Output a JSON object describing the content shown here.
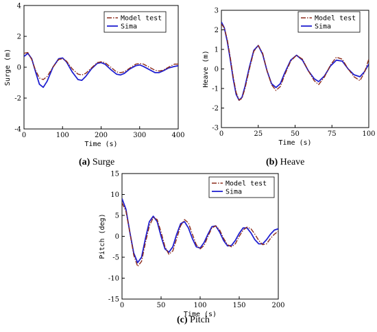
{
  "chart_data": [
    {
      "id": "surge",
      "type": "line",
      "caption_label": "(a)",
      "caption_text": " Surge",
      "xlabel": "Time (s)",
      "ylabel": "Surge (m)",
      "xlim": [
        0,
        400
      ],
      "ylim": [
        -4,
        4
      ],
      "xticks": [
        0,
        100,
        200,
        300,
        400
      ],
      "yticks": [
        -4,
        -2,
        0,
        2,
        4
      ],
      "legend_position": "top-right",
      "series": [
        {
          "name": "Model test",
          "color": "#8b2a1a",
          "style": "dashdot",
          "x": [
            0,
            10,
            20,
            30,
            40,
            50,
            60,
            75,
            90,
            100,
            110,
            125,
            140,
            150,
            160,
            175,
            190,
            200,
            210,
            225,
            240,
            250,
            260,
            275,
            290,
            300,
            310,
            325,
            340,
            350,
            360,
            375,
            390,
            400
          ],
          "y": [
            0.9,
            0.95,
            0.5,
            -0.2,
            -0.7,
            -0.8,
            -0.6,
            0.0,
            0.5,
            0.55,
            0.4,
            -0.1,
            -0.45,
            -0.5,
            -0.4,
            -0.05,
            0.3,
            0.35,
            0.3,
            0.0,
            -0.3,
            -0.35,
            -0.3,
            -0.05,
            0.2,
            0.25,
            0.2,
            0.0,
            -0.2,
            -0.25,
            -0.2,
            0.0,
            0.2,
            0.2
          ]
        },
        {
          "name": "Sima",
          "color": "#1f1fd0",
          "style": "solid",
          "x": [
            0,
            10,
            20,
            30,
            40,
            50,
            60,
            75,
            90,
            100,
            110,
            125,
            140,
            150,
            160,
            175,
            190,
            200,
            210,
            225,
            240,
            250,
            260,
            275,
            290,
            300,
            310,
            325,
            340,
            350,
            360,
            375,
            390,
            400
          ],
          "y": [
            0.7,
            0.9,
            0.55,
            -0.3,
            -1.1,
            -1.3,
            -0.9,
            0.0,
            0.55,
            0.6,
            0.35,
            -0.3,
            -0.8,
            -0.85,
            -0.6,
            -0.1,
            0.25,
            0.3,
            0.2,
            -0.15,
            -0.45,
            -0.5,
            -0.4,
            -0.1,
            0.1,
            0.15,
            0.05,
            -0.15,
            -0.35,
            -0.35,
            -0.25,
            -0.05,
            0.05,
            0.1
          ]
        }
      ]
    },
    {
      "id": "heave",
      "type": "line",
      "caption_label": "(b)",
      "caption_text": " Heave",
      "xlabel": "Time (s)",
      "ylabel": "Heave (m)",
      "xlim": [
        0,
        100
      ],
      "ylim": [
        -3,
        3
      ],
      "xticks": [
        0,
        25,
        50,
        75,
        100
      ],
      "yticks": [
        -3,
        -2,
        -1,
        0,
        1,
        2,
        3
      ],
      "legend_position": "top-right",
      "series": [
        {
          "name": "Model test",
          "color": "#8b2a1a",
          "style": "dashdot",
          "x": [
            0,
            2,
            4,
            6,
            8,
            10,
            12,
            14,
            16,
            19,
            22,
            25,
            28,
            31,
            34,
            37,
            40,
            43,
            47,
            51,
            55,
            59,
            63,
            66,
            70,
            74,
            78,
            82,
            86,
            90,
            94,
            97,
            100
          ],
          "y": [
            2.3,
            2.1,
            1.5,
            0.6,
            -0.4,
            -1.2,
            -1.6,
            -1.5,
            -1.0,
            0.0,
            0.9,
            1.2,
            0.8,
            -0.1,
            -0.8,
            -1.1,
            -0.9,
            -0.3,
            0.4,
            0.7,
            0.5,
            -0.1,
            -0.6,
            -0.8,
            -0.4,
            0.2,
            0.6,
            0.5,
            0.0,
            -0.4,
            -0.6,
            -0.2,
            0.5
          ]
        },
        {
          "name": "Sima",
          "color": "#1f1fd0",
          "style": "solid",
          "x": [
            0,
            2,
            4,
            6,
            8,
            10,
            12,
            14,
            16,
            19,
            22,
            25,
            28,
            31,
            34,
            37,
            40,
            43,
            47,
            51,
            55,
            59,
            63,
            66,
            70,
            74,
            78,
            82,
            86,
            90,
            94,
            97,
            100
          ],
          "y": [
            2.4,
            2.1,
            1.4,
            0.5,
            -0.5,
            -1.3,
            -1.6,
            -1.45,
            -0.9,
            0.1,
            0.95,
            1.2,
            0.75,
            -0.1,
            -0.75,
            -0.95,
            -0.75,
            -0.2,
            0.45,
            0.7,
            0.45,
            -0.1,
            -0.5,
            -0.65,
            -0.35,
            0.15,
            0.45,
            0.4,
            0.0,
            -0.3,
            -0.4,
            -0.15,
            0.25
          ]
        }
      ]
    },
    {
      "id": "pitch",
      "type": "line",
      "caption_label": "(c)",
      "caption_text": " Pitch",
      "xlabel": "Time (s)",
      "ylabel": "Pitch (deg)",
      "xlim": [
        0,
        200
      ],
      "ylim": [
        -15,
        15
      ],
      "xticks": [
        0,
        50,
        100,
        150,
        200
      ],
      "yticks": [
        -15,
        -10,
        -5,
        0,
        5,
        10,
        15
      ],
      "legend_position": "top-right",
      "series": [
        {
          "name": "Model test",
          "color": "#8b2a1a",
          "style": "dashdot",
          "x": [
            0,
            5,
            10,
            15,
            20,
            25,
            30,
            35,
            40,
            45,
            50,
            55,
            60,
            65,
            70,
            75,
            80,
            85,
            90,
            95,
            100,
            105,
            110,
            115,
            120,
            125,
            130,
            135,
            140,
            145,
            150,
            155,
            160,
            165,
            170,
            175,
            180,
            185,
            190,
            195,
            200
          ],
          "y": [
            8.0,
            6.0,
            1.0,
            -4.5,
            -7.2,
            -6.0,
            -1.5,
            2.5,
            4.5,
            4.0,
            1.0,
            -2.5,
            -4.3,
            -3.5,
            -0.5,
            2.5,
            4.0,
            3.2,
            0.5,
            -2.0,
            -3.0,
            -2.2,
            0.0,
            2.0,
            2.5,
            1.5,
            -0.5,
            -2.0,
            -2.5,
            -1.8,
            0.0,
            1.5,
            2.2,
            1.8,
            0.5,
            -1.0,
            -2.0,
            -1.8,
            -0.5,
            0.5,
            1.2
          ]
        },
        {
          "name": "Sima",
          "color": "#1f1fd0",
          "style": "solid",
          "x": [
            0,
            5,
            10,
            15,
            20,
            25,
            30,
            35,
            40,
            45,
            50,
            55,
            60,
            65,
            70,
            75,
            80,
            85,
            90,
            95,
            100,
            105,
            110,
            115,
            120,
            125,
            130,
            135,
            140,
            145,
            150,
            155,
            160,
            165,
            170,
            175,
            180,
            185,
            190,
            195,
            200
          ],
          "y": [
            9.0,
            6.5,
            1.0,
            -4.0,
            -6.3,
            -5.0,
            -0.5,
            3.5,
            4.8,
            3.5,
            0.0,
            -3.0,
            -3.8,
            -2.5,
            0.5,
            3.0,
            3.5,
            2.0,
            -0.5,
            -2.5,
            -2.8,
            -1.5,
            0.5,
            2.3,
            2.5,
            1.0,
            -1.0,
            -2.3,
            -2.2,
            -1.0,
            0.7,
            2.0,
            2.0,
            0.8,
            -0.8,
            -1.8,
            -1.8,
            -0.8,
            0.5,
            1.5,
            1.8
          ]
        }
      ]
    }
  ]
}
